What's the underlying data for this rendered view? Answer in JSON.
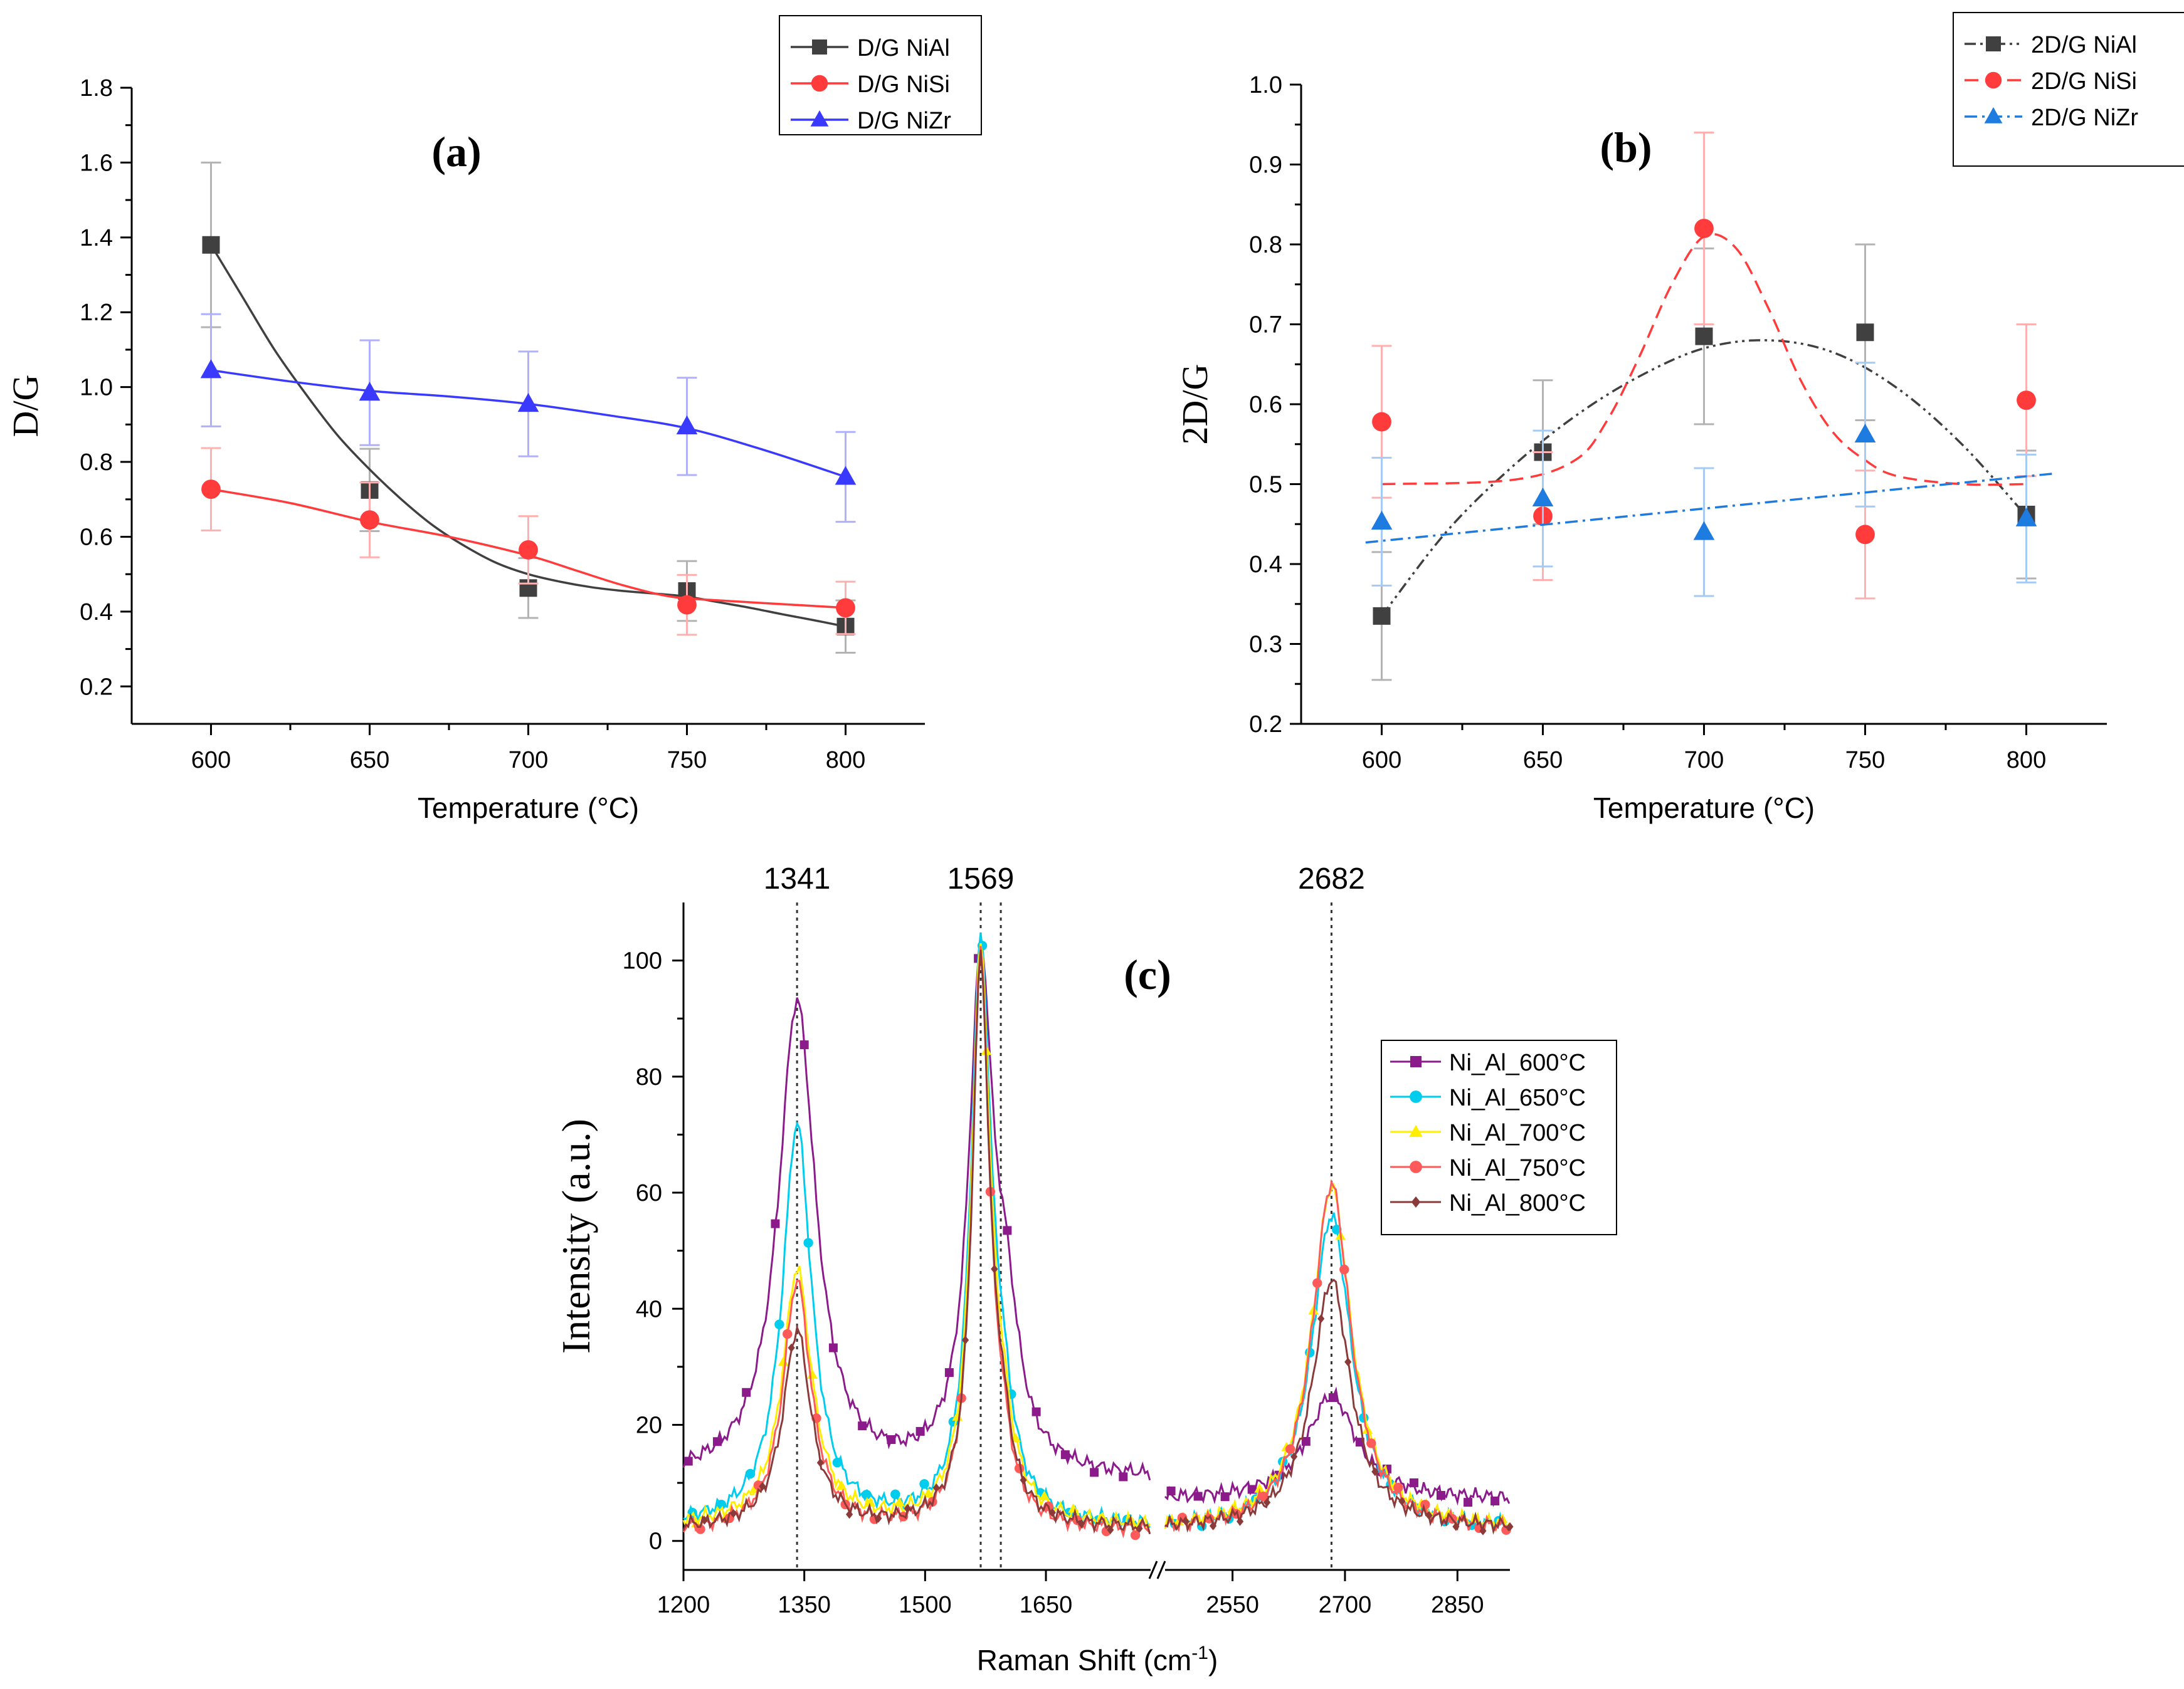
{
  "chart_data": [
    {
      "panel": "a",
      "type": "scatter",
      "title": "(a)",
      "xlabel": "Temperature (°C)",
      "ylabel": "D/G",
      "xlim": [
        575,
        825
      ],
      "ylim": [
        0.1,
        1.8
      ],
      "xticks": [
        600,
        650,
        700,
        750,
        800
      ],
      "yticks": [
        0.2,
        0.4,
        0.6,
        0.8,
        1.0,
        1.2,
        1.4,
        1.6,
        1.8
      ],
      "ytick_labels": [
        "0.2",
        "0.4",
        "0.6",
        "0.8",
        "1.0",
        "1.2",
        "1.4",
        "1.6",
        "1.8"
      ],
      "legend_position": "top-right",
      "series": [
        {
          "name": "D/G NiAl",
          "color": "#404040",
          "marker": "square",
          "line": "solid",
          "x": [
            600,
            650,
            700,
            750,
            800
          ],
          "y": [
            1.38,
            0.725,
            0.463,
            0.455,
            0.36
          ],
          "err": [
            0.22,
            0.11,
            0.08,
            0.08,
            0.07
          ],
          "fit_x": [
            600,
            610,
            620,
            630,
            640,
            650,
            660,
            670,
            680,
            690,
            700,
            710,
            720,
            730,
            740,
            750,
            760,
            770,
            780,
            790,
            800
          ],
          "fit_y": [
            1.38,
            1.24,
            1.1,
            0.98,
            0.87,
            0.78,
            0.7,
            0.63,
            0.575,
            0.53,
            0.5,
            0.48,
            0.465,
            0.455,
            0.448,
            0.44,
            0.425,
            0.41,
            0.393,
            0.377,
            0.36
          ]
        },
        {
          "name": "D/G NiSi",
          "color": "#ff3b3b",
          "marker": "circle",
          "line": "solid",
          "x": [
            600,
            650,
            700,
            750,
            800
          ],
          "y": [
            0.727,
            0.645,
            0.565,
            0.418,
            0.41
          ],
          "err": [
            0.11,
            0.1,
            0.09,
            0.08,
            0.07
          ],
          "fit_x": [
            600,
            625,
            650,
            675,
            700,
            715,
            730,
            745,
            760,
            780,
            800
          ],
          "fit_y": [
            0.727,
            0.69,
            0.64,
            0.6,
            0.55,
            0.51,
            0.47,
            0.44,
            0.43,
            0.42,
            0.41
          ]
        },
        {
          "name": "D/G NiZr",
          "color": "#3a3aff",
          "marker": "triangle",
          "line": "solid",
          "x": [
            600,
            650,
            700,
            750,
            800
          ],
          "y": [
            1.045,
            0.985,
            0.955,
            0.895,
            0.76
          ],
          "err": [
            0.15,
            0.14,
            0.14,
            0.13,
            0.12
          ],
          "fit_x": [
            600,
            625,
            650,
            675,
            700,
            725,
            750,
            775,
            800
          ],
          "fit_y": [
            1.045,
            1.015,
            0.99,
            0.975,
            0.955,
            0.925,
            0.89,
            0.83,
            0.76
          ]
        }
      ]
    },
    {
      "panel": "b",
      "type": "scatter",
      "title": "(b)",
      "xlabel": "Temperature (°C)",
      "ylabel": "2D/G",
      "xlim": [
        575,
        825
      ],
      "ylim": [
        0.2,
        1.0
      ],
      "xticks": [
        600,
        650,
        700,
        750,
        800
      ],
      "yticks": [
        0.2,
        0.3,
        0.4,
        0.5,
        0.6,
        0.7,
        0.8,
        0.9,
        1.0
      ],
      "ytick_labels": [
        "0.2",
        "0.3",
        "0.4",
        "0.5",
        "0.6",
        "0.7",
        "0.8",
        "0.9",
        "1.0"
      ],
      "legend_position": "top-right",
      "series": [
        {
          "name": "2D/G NiAl",
          "color": "#404040",
          "marker": "square",
          "line": "dashdotdot",
          "x": [
            600,
            650,
            700,
            750,
            800
          ],
          "y": [
            0.335,
            0.54,
            0.685,
            0.69,
            0.462
          ],
          "err": [
            0.08,
            0.09,
            0.11,
            0.11,
            0.08
          ],
          "fit_x": [
            600,
            620,
            640,
            660,
            680,
            700,
            720,
            740,
            760,
            780,
            800
          ],
          "fit_y": [
            0.335,
            0.44,
            0.52,
            0.585,
            0.635,
            0.67,
            0.68,
            0.665,
            0.62,
            0.55,
            0.46
          ]
        },
        {
          "name": "2D/G NiSi",
          "color": "#ff3b3b",
          "marker": "circle",
          "line": "dashed",
          "x": [
            600,
            650,
            700,
            750,
            800
          ],
          "y": [
            0.578,
            0.46,
            0.82,
            0.437,
            0.605
          ],
          "err": [
            0.095,
            0.08,
            0.12,
            0.08,
            0.095
          ],
          "fit_x": [
            600,
            640,
            660,
            670,
            680,
            690,
            700,
            710,
            720,
            730,
            740,
            750,
            760,
            780,
            800
          ],
          "fit_y": [
            0.5,
            0.505,
            0.53,
            0.58,
            0.66,
            0.75,
            0.81,
            0.795,
            0.72,
            0.63,
            0.565,
            0.53,
            0.51,
            0.5,
            0.5
          ]
        },
        {
          "name": "2D/G NiZr",
          "color": "#1e7be0",
          "marker": "triangle",
          "line": "dashdot",
          "x": [
            600,
            650,
            700,
            750,
            800
          ],
          "y": [
            0.453,
            0.482,
            0.44,
            0.562,
            0.457
          ],
          "err": [
            0.08,
            0.085,
            0.08,
            0.09,
            0.08
          ],
          "fit_x": [
            595,
            808
          ],
          "fit_y": [
            0.427,
            0.513
          ]
        }
      ]
    },
    {
      "panel": "c",
      "type": "line",
      "title": "(c)",
      "xlabel": "Raman Shift (cm",
      "xlabel_sup": "-1",
      "xlabel_close": ")",
      "ylabel": "Intensity (a.u.)",
      "ylim": [
        -5,
        110
      ],
      "yticks": [
        0,
        20,
        40,
        60,
        80,
        100
      ],
      "ytick_labels": [
        "0",
        "20",
        "40",
        "60",
        "80",
        "100"
      ],
      "left_segment": {
        "xlim": [
          1200,
          1780
        ],
        "xticks": [
          1200,
          1350,
          1500,
          1650
        ]
      },
      "right_segment": {
        "xlim": [
          2460,
          2920
        ],
        "xticks": [
          2550,
          2700,
          2850
        ]
      },
      "peak_labels": [
        {
          "x": 1341,
          "label": "1341"
        },
        {
          "x": 1569,
          "label": "1569"
        },
        {
          "x": 2682,
          "label": "2682"
        }
      ],
      "extra_reference_line": 1594,
      "legend_position": "right",
      "series": [
        {
          "name": "Ni_Al_600°C",
          "color": "#8b1a8b",
          "marker": "square",
          "baseline_left": 10.5,
          "slope": 0.025,
          "baseline_right": 7,
          "peaks": [
            {
              "x": 1341,
              "amp": 82,
              "w": 28
            },
            {
              "x": 1569,
              "amp": 85,
              "w": 18
            },
            {
              "x": 1600,
              "amp": 22,
              "w": 20
            },
            {
              "x": 2682,
              "amp": 18,
              "w": 40
            }
          ]
        },
        {
          "name": "Ni_Al_650°C",
          "color": "#00ccee",
          "marker": "circle",
          "baseline_left": 2.5,
          "slope": 0.002,
          "baseline_right": 2,
          "peaks": [
            {
              "x": 1341,
              "amp": 69,
              "w": 22
            },
            {
              "x": 1569,
              "amp": 96,
              "w": 15
            },
            {
              "x": 1594,
              "amp": 15,
              "w": 18
            },
            {
              "x": 2682,
              "amp": 54,
              "w": 32
            }
          ]
        },
        {
          "name": "Ni_Al_700°C",
          "color": "#ffee00",
          "marker": "triangle",
          "baseline_left": 2.5,
          "slope": 0.004,
          "baseline_right": 2,
          "peaks": [
            {
              "x": 1341,
              "amp": 44,
              "w": 22
            },
            {
              "x": 1569,
              "amp": 96,
              "w": 14
            },
            {
              "x": 1594,
              "amp": 12,
              "w": 18
            },
            {
              "x": 2682,
              "amp": 59,
              "w": 32
            }
          ]
        },
        {
          "name": "Ni_Al_750°C",
          "color": "#ff5a5a",
          "marker": "circle",
          "baseline_left": 1.5,
          "slope": 0.002,
          "baseline_right": 1.5,
          "peaks": [
            {
              "x": 1341,
              "amp": 43,
              "w": 21
            },
            {
              "x": 1569,
              "amp": 97,
              "w": 13
            },
            {
              "x": 1594,
              "amp": 10,
              "w": 16
            },
            {
              "x": 2682,
              "amp": 60,
              "w": 31
            }
          ]
        },
        {
          "name": "Ni_Al_800°C",
          "color": "#8b3a3a",
          "marker": "diamond",
          "baseline_left": 2.0,
          "slope": 0.002,
          "baseline_right": 2,
          "peaks": [
            {
              "x": 1341,
              "amp": 34,
              "w": 21
            },
            {
              "x": 1569,
              "amp": 95,
              "w": 13
            },
            {
              "x": 1594,
              "amp": 12,
              "w": 16
            },
            {
              "x": 2682,
              "amp": 43,
              "w": 31
            }
          ]
        }
      ]
    }
  ]
}
